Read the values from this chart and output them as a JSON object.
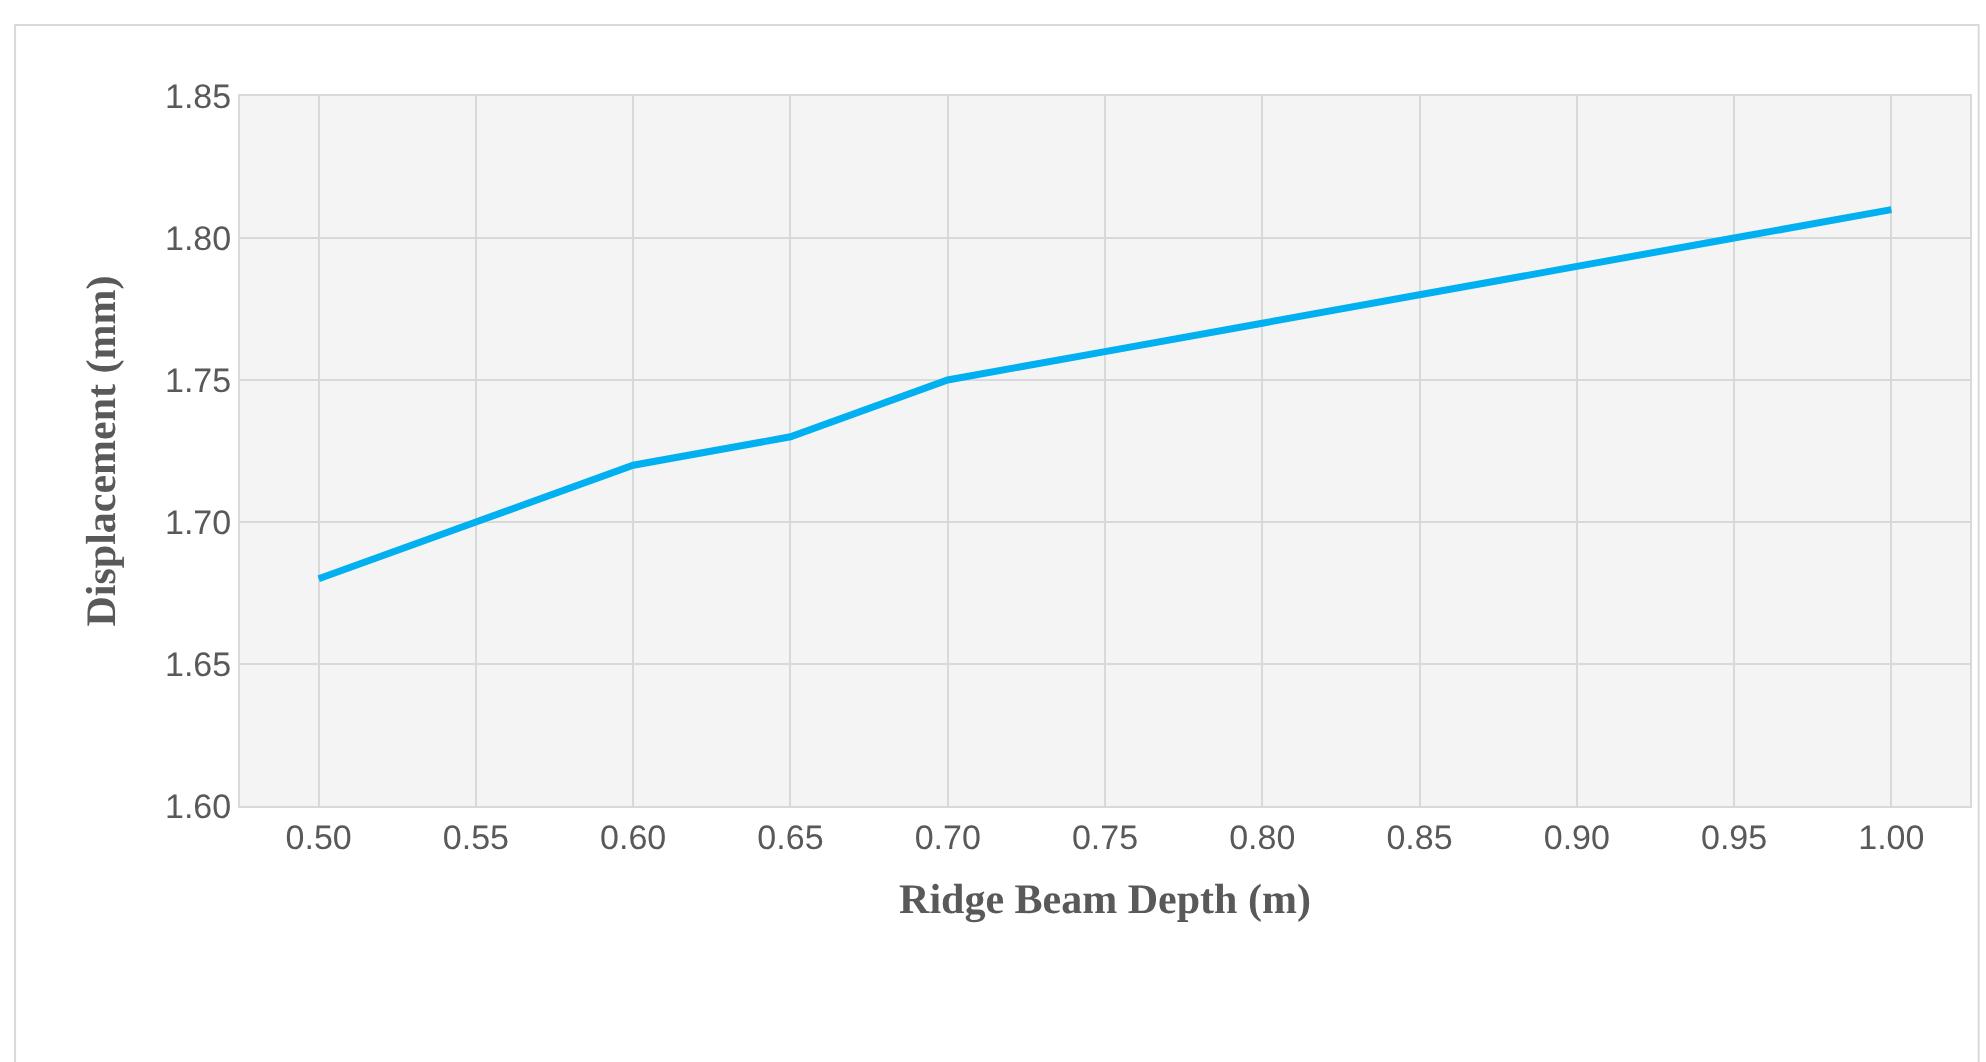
{
  "chart_data": {
    "type": "line",
    "xlabel": "Ridge Beam Depth (m)",
    "ylabel": "Displacement (mm)",
    "categories": [
      "0.50",
      "0.55",
      "0.60",
      "0.65",
      "0.70",
      "0.75",
      "0.80",
      "0.85",
      "0.90",
      "0.95",
      "1.00"
    ],
    "series": [
      {
        "color": "#00b0f0",
        "values": [
          1.68,
          1.7,
          1.72,
          1.73,
          1.75,
          1.76,
          1.77,
          1.78,
          1.79,
          1.8,
          1.81
        ]
      }
    ],
    "ylim": [
      1.6,
      1.85
    ],
    "yticks": [
      {
        "value": 1.6,
        "label": "1.60"
      },
      {
        "value": 1.65,
        "label": "1.65"
      },
      {
        "value": 1.7,
        "label": "1.70"
      },
      {
        "value": 1.75,
        "label": "1.75"
      },
      {
        "value": 1.8,
        "label": "1.80"
      },
      {
        "value": 1.85,
        "label": "1.85"
      }
    ],
    "grid": true,
    "marker": "none",
    "line_style": "solid"
  }
}
